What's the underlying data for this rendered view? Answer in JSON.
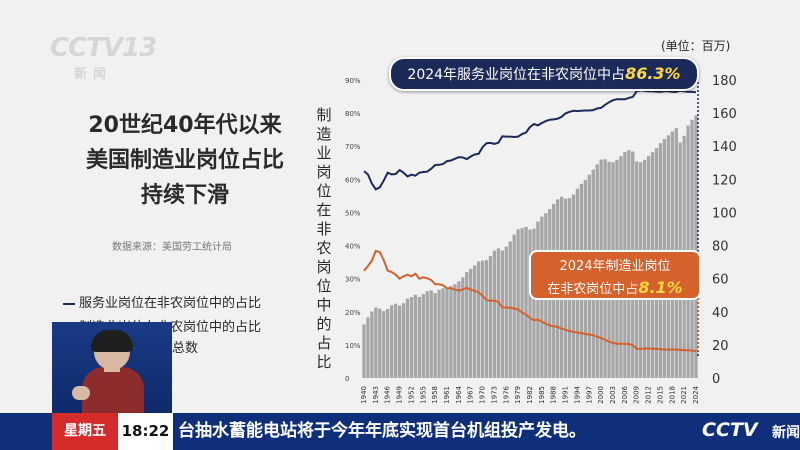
{
  "watermark": {
    "brand": "CCTV13",
    "sub": "新闻"
  },
  "headline": {
    "line1": "20世纪40年代以来",
    "line2": "美国制造业岗位占比",
    "line3": "持续下滑"
  },
  "source": "数据来源：美国劳工统计局",
  "legend": {
    "service": "服务业岗位在非农岗位中的占比",
    "manufacturing": "制造业岗位在非农岗位中的占比",
    "count": "总数"
  },
  "axis": {
    "left_label": "制造业岗位在非农岗位中的占比",
    "right_unit": "(单位：百万)"
  },
  "callouts": {
    "service": {
      "text": "2024年服务业岗位在非农岗位中占",
      "value": "86.3%"
    },
    "manufacturing": {
      "line1": "2024年制造业岗位",
      "line2": "在非农岗位中占",
      "value": "8.1%"
    }
  },
  "colors": {
    "service": "#1c2a59",
    "manufacturing": "#d5622c",
    "bars": "#a6a6a6"
  },
  "ticker": {
    "day": "星期五",
    "time": "18:22",
    "text": "台抽水蓄能电站将于今年年底实现首台机组投产发电。",
    "logo": "CCTV",
    "logo2": "新闻"
  },
  "chart_data": {
    "type": "bar+line",
    "x_tick_labels": [
      "1940",
      "1943",
      "1946",
      "1949",
      "1952",
      "1955",
      "1958",
      "1961",
      "1964",
      "1967",
      "1970",
      "1973",
      "1976",
      "1979",
      "1982",
      "1985",
      "1988",
      "1991",
      "1994",
      "1997",
      "2000",
      "2003",
      "2006",
      "2009",
      "2012",
      "2015",
      "2018",
      "2021",
      "2024"
    ],
    "left_axis": {
      "ticks": [
        "0",
        "10%",
        "20%",
        "30%",
        "40%",
        "50%",
        "60%",
        "70%",
        "80%",
        "90%"
      ],
      "ylim": [
        0,
        90
      ]
    },
    "right_axis": {
      "ticks": [
        "0",
        "20",
        "40",
        "60",
        "80",
        "100",
        "120",
        "140",
        "160",
        "180"
      ],
      "ylim": [
        0,
        180
      ]
    },
    "x": [
      1940,
      1941,
      1942,
      1943,
      1944,
      1945,
      1946,
      1947,
      1948,
      1949,
      1950,
      1951,
      1952,
      1953,
      1954,
      1955,
      1956,
      1957,
      1958,
      1959,
      1960,
      1961,
      1962,
      1963,
      1964,
      1965,
      1966,
      1967,
      1968,
      1969,
      1970,
      1971,
      1972,
      1973,
      1974,
      1975,
      1976,
      1977,
      1978,
      1979,
      1980,
      1981,
      1982,
      1983,
      1984,
      1985,
      1986,
      1987,
      1988,
      1989,
      1990,
      1991,
      1992,
      1993,
      1994,
      1995,
      1996,
      1997,
      1998,
      1999,
      2000,
      2001,
      2002,
      2003,
      2004,
      2005,
      2006,
      2007,
      2008,
      2009,
      2010,
      2011,
      2012,
      2013,
      2014,
      2015,
      2016,
      2017,
      2018,
      2019,
      2020,
      2021,
      2022,
      2023,
      2024
    ],
    "series": [
      {
        "name": "总数",
        "kind": "bar",
        "axis": "right",
        "values": [
          32.4,
          36.6,
          40.2,
          42.5,
          41.9,
          40.4,
          41.7,
          43.9,
          44.9,
          43.8,
          45.2,
          47.9,
          48.9,
          50.3,
          49.0,
          50.7,
          52.4,
          52.9,
          51.3,
          53.3,
          54.2,
          54.0,
          55.5,
          56.7,
          58.4,
          60.8,
          64.0,
          65.9,
          68.0,
          70.4,
          70.9,
          71.2,
          73.7,
          76.9,
          78.3,
          77.0,
          79.4,
          82.5,
          86.7,
          89.8,
          90.5,
          91.3,
          89.6,
          90.2,
          94.5,
          97.5,
          99.5,
          102.1,
          105.2,
          107.9,
          109.5,
          108.3,
          108.7,
          110.8,
          114.3,
          117.3,
          119.7,
          122.8,
          125.9,
          129.0,
          132.0,
          132.1,
          130.6,
          130.3,
          131.8,
          134.0,
          136.5,
          137.6,
          136.8,
          130.8,
          130.3,
          131.8,
          134.1,
          136.4,
          138.9,
          141.8,
          144.3,
          146.6,
          148.9,
          150.9,
          142.2,
          146.3,
          152.5,
          155.9,
          158.6
        ]
      },
      {
        "name": "服务业岗位在非农岗位中的占比",
        "kind": "line",
        "axis": "left",
        "values": [
          62.5,
          61.5,
          58.7,
          57.0,
          57.6,
          59.6,
          62.0,
          61.5,
          61.6,
          62.8,
          62.0,
          60.9,
          61.4,
          61.1,
          62.0,
          62.2,
          62.3,
          63.2,
          64.3,
          64.4,
          64.6,
          65.5,
          65.7,
          66.2,
          66.7,
          66.6,
          66.1,
          66.9,
          67.5,
          67.7,
          69.7,
          70.9,
          71.0,
          70.7,
          71.1,
          73.0,
          72.9,
          72.9,
          72.8,
          72.9,
          73.7,
          74.1,
          75.8,
          76.7,
          76.3,
          77.0,
          77.6,
          78.0,
          78.1,
          78.3,
          78.9,
          79.9,
          80.4,
          80.7,
          80.6,
          80.7,
          80.8,
          80.8,
          80.9,
          81.4,
          81.6,
          82.5,
          83.3,
          83.9,
          84.2,
          84.2,
          84.2,
          84.6,
          84.9,
          86.6,
          86.9,
          86.7,
          86.6,
          86.6,
          86.5,
          86.4,
          86.6,
          86.6,
          86.4,
          86.4,
          86.8,
          86.6,
          86.4,
          86.4,
          86.3
        ]
      },
      {
        "name": "制造业岗位在非农岗位中的占比",
        "kind": "line",
        "axis": "left",
        "values": [
          32.4,
          33.8,
          35.5,
          38.4,
          38.0,
          35.6,
          32.4,
          32.0,
          31.2,
          30.0,
          30.7,
          31.2,
          30.7,
          31.5,
          30.0,
          30.4,
          30.1,
          29.6,
          28.3,
          28.3,
          28.0,
          27.1,
          27.1,
          26.7,
          26.4,
          26.8,
          27.2,
          26.7,
          26.3,
          25.9,
          24.8,
          23.6,
          23.3,
          23.4,
          22.9,
          21.3,
          21.3,
          21.2,
          21.0,
          20.7,
          19.7,
          19.2,
          18.1,
          17.5,
          17.6,
          17.0,
          16.4,
          15.9,
          15.6,
          15.4,
          14.9,
          14.6,
          14.2,
          13.9,
          13.7,
          13.6,
          13.3,
          13.1,
          12.9,
          12.4,
          12.1,
          11.5,
          11.0,
          10.6,
          10.3,
          10.3,
          10.3,
          10.3,
          9.9,
          8.8,
          8.8,
          8.9,
          8.9,
          8.8,
          8.8,
          8.7,
          8.6,
          8.6,
          8.6,
          8.6,
          8.5,
          8.4,
          8.4,
          8.3,
          8.1
        ]
      }
    ]
  }
}
